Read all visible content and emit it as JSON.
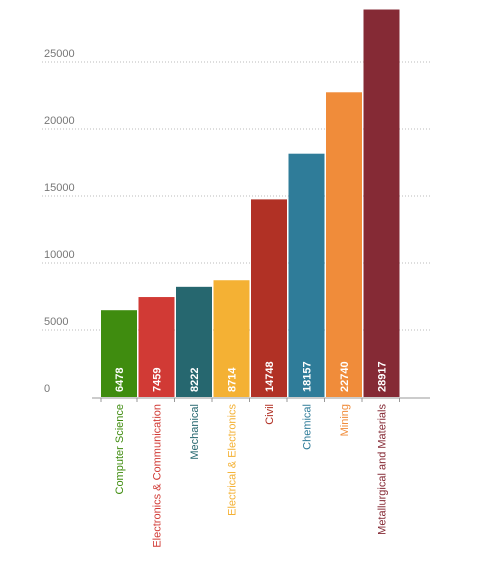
{
  "chart_data": {
    "type": "bar",
    "title": "",
    "xlabel": "",
    "ylabel": "",
    "ylim": [
      0,
      29500
    ],
    "yticks": [
      0,
      5000,
      10000,
      15000,
      20000,
      25000
    ],
    "grid": true,
    "categories": [
      "Computer Science",
      "Electronics & Communication",
      "Mechanical",
      "Electrical & Electronics",
      "Civil",
      "Chemical",
      "Mining",
      "Metallurgical and Materials"
    ],
    "values": [
      6478,
      7459,
      8222,
      8714,
      14748,
      18157,
      22740,
      28917
    ],
    "colors": [
      "#3f8c0f",
      "#d13a35",
      "#26676f",
      "#f4b134",
      "#b13125",
      "#2f7c99",
      "#f08c3a",
      "#852a35"
    ]
  }
}
